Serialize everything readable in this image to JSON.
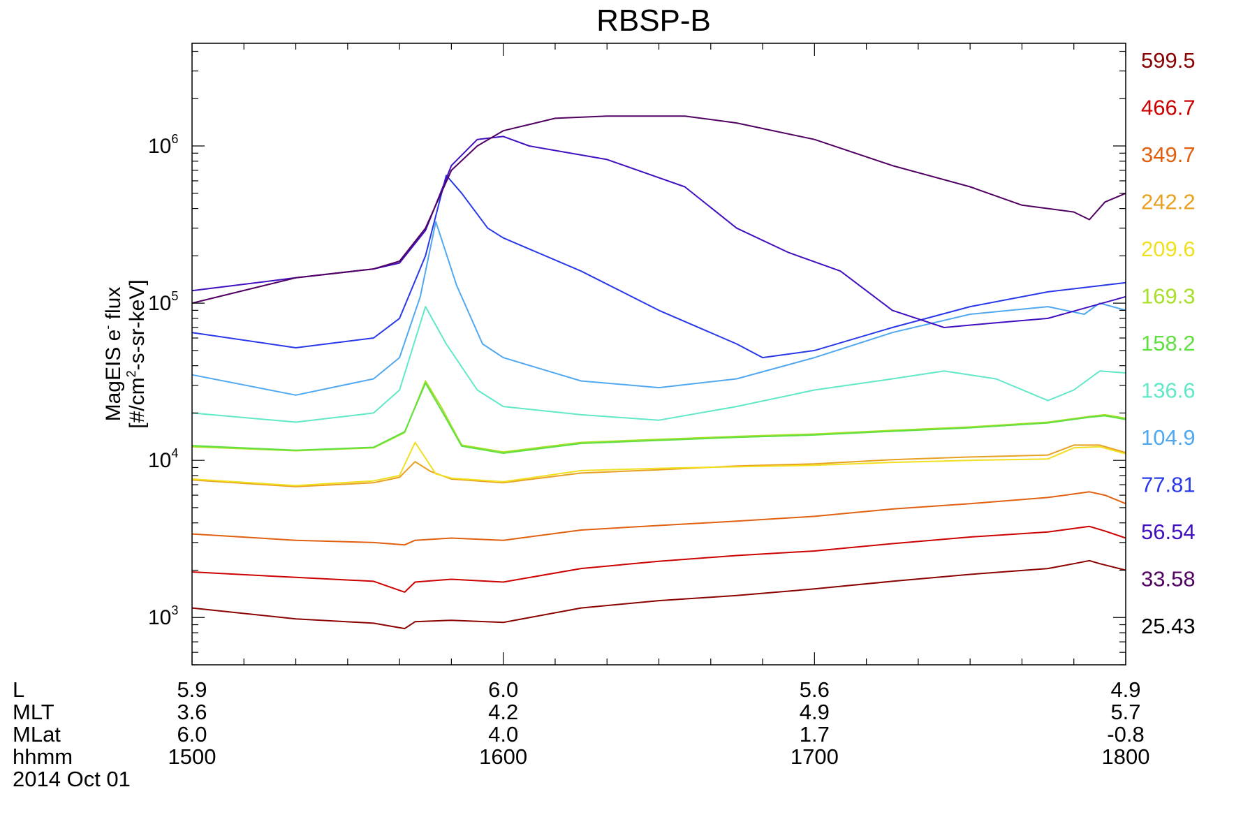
{
  "chart_data": {
    "type": "line",
    "title": "RBSP-B",
    "ylabel_line1": "MagEIS e",
    "ylabel_sup1": "-",
    "ylabel_line1b": " flux",
    "ylabel_line2": "[#/cm",
    "ylabel_sup2": "2",
    "ylabel_line2b": "-s-sr-keV]",
    "yscale": "log",
    "ylim": [
      500,
      4500000
    ],
    "y_ticks": [
      {
        "base": "10",
        "exp": "3",
        "value": 1000
      },
      {
        "base": "10",
        "exp": "4",
        "value": 10000
      },
      {
        "base": "10",
        "exp": "5",
        "value": 100000
      },
      {
        "base": "10",
        "exp": "6",
        "value": 1000000
      }
    ],
    "x_unit": "hhmm",
    "xlim": [
      "15:00",
      "18:00"
    ],
    "ephemeris": {
      "rows": [
        "L",
        "MLT",
        "MLat",
        "hhmm"
      ],
      "date": "2014 Oct 01",
      "columns": [
        {
          "time": "15:00",
          "L": "5.9",
          "MLT": "3.6",
          "MLat": "6.0",
          "hhmm": "1500"
        },
        {
          "time": "16:00",
          "L": "6.0",
          "MLT": "4.2",
          "MLat": "4.0",
          "hhmm": "1600"
        },
        {
          "time": "17:00",
          "L": "5.6",
          "MLT": "4.9",
          "MLat": "1.7",
          "hhmm": "1700"
        },
        {
          "time": "18:00",
          "L": "4.9",
          "MLT": "5.7",
          "MLat": "-0.8",
          "hhmm": "1800"
        }
      ]
    },
    "legend_position": "right",
    "series": [
      {
        "name": "599.5",
        "color": "#8b0000",
        "values": [
          [
            "15:00",
            1150
          ],
          [
            "15:20",
            980
          ],
          [
            "15:35",
            920
          ],
          [
            "15:41",
            850
          ],
          [
            "15:43",
            940
          ],
          [
            "15:50",
            960
          ],
          [
            "16:00",
            930
          ],
          [
            "16:15",
            1150
          ],
          [
            "16:30",
            1280
          ],
          [
            "16:45",
            1380
          ],
          [
            "17:00",
            1520
          ],
          [
            "17:15",
            1700
          ],
          [
            "17:30",
            1880
          ],
          [
            "17:45",
            2050
          ],
          [
            "17:50",
            2200
          ],
          [
            "17:53",
            2300
          ],
          [
            "17:55",
            2200
          ],
          [
            "18:00",
            2000
          ]
        ]
      },
      {
        "name": "466.7",
        "color": "#cc0000",
        "values": [
          [
            "15:00",
            1950
          ],
          [
            "15:20",
            1800
          ],
          [
            "15:35",
            1700
          ],
          [
            "15:41",
            1450
          ],
          [
            "15:43",
            1680
          ],
          [
            "15:50",
            1750
          ],
          [
            "16:00",
            1680
          ],
          [
            "16:15",
            2050
          ],
          [
            "16:30",
            2280
          ],
          [
            "16:45",
            2480
          ],
          [
            "17:00",
            2650
          ],
          [
            "17:15",
            2950
          ],
          [
            "17:30",
            3250
          ],
          [
            "17:45",
            3500
          ],
          [
            "17:53",
            3800
          ],
          [
            "17:56",
            3550
          ],
          [
            "18:00",
            3200
          ]
        ]
      },
      {
        "name": "349.7",
        "color": "#e06010",
        "values": [
          [
            "15:00",
            3400
          ],
          [
            "15:20",
            3100
          ],
          [
            "15:35",
            3000
          ],
          [
            "15:41",
            2900
          ],
          [
            "15:43",
            3100
          ],
          [
            "15:50",
            3200
          ],
          [
            "16:00",
            3100
          ],
          [
            "16:15",
            3600
          ],
          [
            "16:30",
            3850
          ],
          [
            "16:45",
            4100
          ],
          [
            "17:00",
            4400
          ],
          [
            "17:15",
            4900
          ],
          [
            "17:30",
            5300
          ],
          [
            "17:45",
            5800
          ],
          [
            "17:53",
            6300
          ],
          [
            "17:56",
            6000
          ],
          [
            "18:00",
            5300
          ]
        ]
      },
      {
        "name": "242.2",
        "color": "#e8a020",
        "values": [
          [
            "15:00",
            7500
          ],
          [
            "15:20",
            6800
          ],
          [
            "15:35",
            7200
          ],
          [
            "15:40",
            7800
          ],
          [
            "15:43",
            9800
          ],
          [
            "15:46",
            8500
          ],
          [
            "15:50",
            7600
          ],
          [
            "16:00",
            7200
          ],
          [
            "16:15",
            8300
          ],
          [
            "16:30",
            8700
          ],
          [
            "16:45",
            9200
          ],
          [
            "17:00",
            9500
          ],
          [
            "17:15",
            10100
          ],
          [
            "17:30",
            10500
          ],
          [
            "17:45",
            10800
          ],
          [
            "17:50",
            12500
          ],
          [
            "17:55",
            12500
          ],
          [
            "18:00",
            11200
          ]
        ]
      },
      {
        "name": "209.6",
        "color": "#f0e020",
        "values": [
          [
            "15:00",
            7600
          ],
          [
            "15:20",
            6900
          ],
          [
            "15:35",
            7400
          ],
          [
            "15:40",
            8000
          ],
          [
            "15:43",
            13000
          ],
          [
            "15:47",
            8200
          ],
          [
            "15:50",
            7700
          ],
          [
            "16:00",
            7300
          ],
          [
            "16:15",
            8600
          ],
          [
            "16:30",
            8900
          ],
          [
            "16:45",
            9100
          ],
          [
            "17:00",
            9300
          ],
          [
            "17:15",
            9700
          ],
          [
            "17:30",
            10000
          ],
          [
            "17:45",
            10200
          ],
          [
            "17:50",
            12000
          ],
          [
            "17:55",
            12200
          ],
          [
            "18:00",
            11000
          ]
        ]
      },
      {
        "name": "169.3",
        "color": "#a8e028",
        "values": [
          [
            "15:00",
            12200
          ],
          [
            "15:20",
            11500
          ],
          [
            "15:35",
            12000
          ],
          [
            "15:41",
            15000
          ],
          [
            "15:45",
            32000
          ],
          [
            "15:48",
            22000
          ],
          [
            "15:52",
            12500
          ],
          [
            "16:00",
            11300
          ],
          [
            "16:15",
            13000
          ],
          [
            "16:30",
            13600
          ],
          [
            "16:45",
            14200
          ],
          [
            "17:00",
            14700
          ],
          [
            "17:15",
            15500
          ],
          [
            "17:30",
            16300
          ],
          [
            "17:45",
            17500
          ],
          [
            "17:53",
            19000
          ],
          [
            "17:56",
            19500
          ],
          [
            "18:00",
            18500
          ]
        ]
      },
      {
        "name": "158.2",
        "color": "#60e040",
        "values": [
          [
            "15:00",
            12400
          ],
          [
            "15:20",
            11600
          ],
          [
            "15:35",
            12100
          ],
          [
            "15:41",
            15200
          ],
          [
            "15:45",
            31000
          ],
          [
            "15:48",
            21000
          ],
          [
            "15:52",
            12300
          ],
          [
            "16:00",
            11100
          ],
          [
            "16:15",
            12800
          ],
          [
            "16:30",
            13400
          ],
          [
            "16:45",
            14000
          ],
          [
            "17:00",
            14500
          ],
          [
            "17:15",
            15300
          ],
          [
            "17:30",
            16100
          ],
          [
            "17:45",
            17300
          ],
          [
            "17:53",
            18800
          ],
          [
            "17:56",
            19200
          ],
          [
            "18:00",
            18200
          ]
        ]
      },
      {
        "name": "136.6",
        "color": "#60e8c8",
        "values": [
          [
            "15:00",
            20000
          ],
          [
            "15:20",
            17500
          ],
          [
            "15:35",
            20000
          ],
          [
            "15:40",
            28000
          ],
          [
            "15:45",
            95000
          ],
          [
            "15:49",
            55000
          ],
          [
            "15:55",
            28000
          ],
          [
            "16:00",
            22000
          ],
          [
            "16:15",
            19500
          ],
          [
            "16:30",
            18000
          ],
          [
            "16:45",
            22000
          ],
          [
            "17:00",
            28000
          ],
          [
            "17:15",
            33000
          ],
          [
            "17:25",
            37000
          ],
          [
            "17:35",
            33000
          ],
          [
            "17:45",
            24000
          ],
          [
            "17:50",
            28000
          ],
          [
            "17:55",
            37000
          ],
          [
            "18:00",
            36000
          ]
        ]
      },
      {
        "name": "104.9",
        "color": "#50a8f0",
        "values": [
          [
            "15:00",
            35000
          ],
          [
            "15:20",
            26000
          ],
          [
            "15:35",
            33000
          ],
          [
            "15:40",
            45000
          ],
          [
            "15:44",
            110000
          ],
          [
            "15:47",
            330000
          ],
          [
            "15:51",
            130000
          ],
          [
            "15:56",
            55000
          ],
          [
            "16:00",
            45000
          ],
          [
            "16:15",
            32000
          ],
          [
            "16:30",
            29000
          ],
          [
            "16:45",
            33000
          ],
          [
            "17:00",
            45000
          ],
          [
            "17:15",
            65000
          ],
          [
            "17:30",
            85000
          ],
          [
            "17:45",
            95000
          ],
          [
            "17:52",
            85000
          ],
          [
            "17:55",
            100000
          ],
          [
            "18:00",
            90000
          ]
        ]
      },
      {
        "name": "77.81",
        "color": "#2838e8",
        "values": [
          [
            "15:00",
            65000
          ],
          [
            "15:20",
            52000
          ],
          [
            "15:35",
            60000
          ],
          [
            "15:40",
            80000
          ],
          [
            "15:45",
            200000
          ],
          [
            "15:49",
            650000
          ],
          [
            "15:52",
            500000
          ],
          [
            "15:57",
            300000
          ],
          [
            "16:00",
            260000
          ],
          [
            "16:15",
            160000
          ],
          [
            "16:30",
            90000
          ],
          [
            "16:45",
            55000
          ],
          [
            "16:50",
            45000
          ],
          [
            "17:00",
            50000
          ],
          [
            "17:15",
            70000
          ],
          [
            "17:30",
            95000
          ],
          [
            "17:45",
            118000
          ],
          [
            "18:00",
            135000
          ]
        ]
      },
      {
        "name": "56.54",
        "color": "#4010c0",
        "values": [
          [
            "15:00",
            120000
          ],
          [
            "15:20",
            145000
          ],
          [
            "15:35",
            165000
          ],
          [
            "15:40",
            180000
          ],
          [
            "15:45",
            290000
          ],
          [
            "15:50",
            750000
          ],
          [
            "15:55",
            1100000
          ],
          [
            "16:00",
            1150000
          ],
          [
            "16:05",
            1000000
          ],
          [
            "16:20",
            820000
          ],
          [
            "16:35",
            550000
          ],
          [
            "16:45",
            300000
          ],
          [
            "16:55",
            210000
          ],
          [
            "17:05",
            160000
          ],
          [
            "17:15",
            90000
          ],
          [
            "17:25",
            70000
          ],
          [
            "17:35",
            75000
          ],
          [
            "17:45",
            80000
          ],
          [
            "18:00",
            110000
          ]
        ]
      },
      {
        "name": "33.58",
        "color": "#500060",
        "values": [
          [
            "15:00",
            100000
          ],
          [
            "15:20",
            145000
          ],
          [
            "15:35",
            165000
          ],
          [
            "15:40",
            185000
          ],
          [
            "15:45",
            300000
          ],
          [
            "15:50",
            700000
          ],
          [
            "15:55",
            1000000
          ],
          [
            "16:00",
            1250000
          ],
          [
            "16:10",
            1500000
          ],
          [
            "16:20",
            1550000
          ],
          [
            "16:35",
            1550000
          ],
          [
            "16:45",
            1400000
          ],
          [
            "17:00",
            1100000
          ],
          [
            "17:15",
            750000
          ],
          [
            "17:30",
            550000
          ],
          [
            "17:40",
            420000
          ],
          [
            "17:50",
            380000
          ],
          [
            "17:53",
            340000
          ],
          [
            "17:56",
            440000
          ],
          [
            "18:00",
            500000
          ]
        ]
      },
      {
        "name": "25.43",
        "color": "#000000",
        "values": []
      }
    ]
  }
}
